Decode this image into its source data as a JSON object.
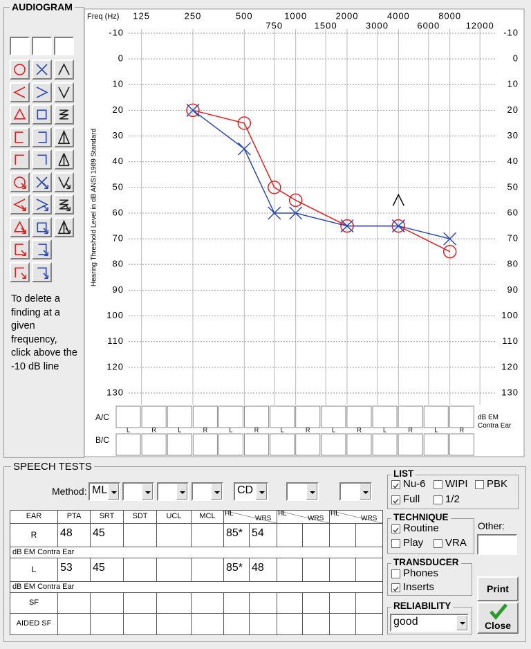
{
  "audiogram": {
    "title": "AUDIOGRAM",
    "delete_hint": "To delete a finding at a given frequency, click above the -10 dB line"
  },
  "chart_data": {
    "type": "line",
    "x_label": "Freq (Hz)",
    "y_label": "Hearing Threshold Level in dB ANSI 1989 Standard",
    "x": [
      250,
      500,
      750,
      1000,
      2000,
      4000,
      8000
    ],
    "series": [
      {
        "name": "R",
        "color": "#e02020",
        "marker": "circle",
        "line": true,
        "values": [
          20,
          25,
          50,
          55,
          65,
          65,
          75
        ]
      },
      {
        "name": "L",
        "color": "#2a48b0",
        "marker": "x",
        "line": true,
        "values": [
          20,
          35,
          60,
          60,
          65,
          65,
          70
        ]
      },
      {
        "name": "Unsp",
        "color": "#000000",
        "marker": "caret",
        "line": false,
        "values": [
          null,
          null,
          null,
          null,
          null,
          55,
          null
        ]
      }
    ],
    "xscale": "log",
    "xlim": [
      88,
      16000
    ],
    "xticks": [
      125,
      250,
      500,
      750,
      1000,
      1500,
      2000,
      3000,
      4000,
      6000,
      8000,
      12000
    ],
    "ylim": [
      -10,
      130
    ],
    "y_inverted": true,
    "yticks": [
      -10,
      0,
      10,
      20,
      30,
      40,
      50,
      60,
      70,
      80,
      90,
      100,
      110,
      120,
      130
    ],
    "grid": true
  },
  "masking": {
    "rows": [
      "A/C",
      "B/C"
    ],
    "ears": [
      "L",
      "R",
      "L",
      "R",
      "L",
      "R",
      "L",
      "R",
      "L",
      "R",
      "L",
      "R",
      "L",
      "R"
    ],
    "note": "dB EM Contra Ear"
  },
  "speech_tests": {
    "title": "SPEECH TESTS",
    "method_label": "Method:",
    "methods": [
      "ML",
      "CD"
    ],
    "table": {
      "headers": [
        "EAR",
        "PTA",
        "SRT",
        "SDT",
        "UCL",
        "MCL"
      ],
      "pair_headers": [
        "HL",
        "WRS"
      ],
      "rows": [
        {
          "ear": "R",
          "pta": 48,
          "srt": 45,
          "hl": "85*",
          "wrs": 54
        },
        {
          "ear": "L",
          "pta": 53,
          "srt": 45,
          "hl": "85*",
          "wrs": 48
        }
      ],
      "contra_note": "dB EM Contra Ear",
      "extra_rows": [
        "SF",
        "AIDED SF"
      ]
    }
  },
  "list": {
    "title": "LIST",
    "options": [
      {
        "label": "Nu-6",
        "checked": true
      },
      {
        "label": "WIPI",
        "checked": false
      },
      {
        "label": "PBK",
        "checked": false
      },
      {
        "label": "Full",
        "checked": true
      },
      {
        "label": "1/2",
        "checked": false
      }
    ]
  },
  "technique": {
    "title": "TECHNIQUE",
    "options": [
      {
        "label": "Routine",
        "checked": true
      },
      {
        "label": "Play",
        "checked": false
      },
      {
        "label": "VRA",
        "checked": false
      }
    ],
    "other_label": "Other:"
  },
  "transducer": {
    "title": "TRANSDUCER",
    "options": [
      {
        "label": "Phones",
        "checked": false
      },
      {
        "label": "Inserts",
        "checked": true
      }
    ]
  },
  "reliability": {
    "title": "RELIABILITY",
    "value": "good"
  },
  "buttons": {
    "print": "Print",
    "close": "Close"
  }
}
